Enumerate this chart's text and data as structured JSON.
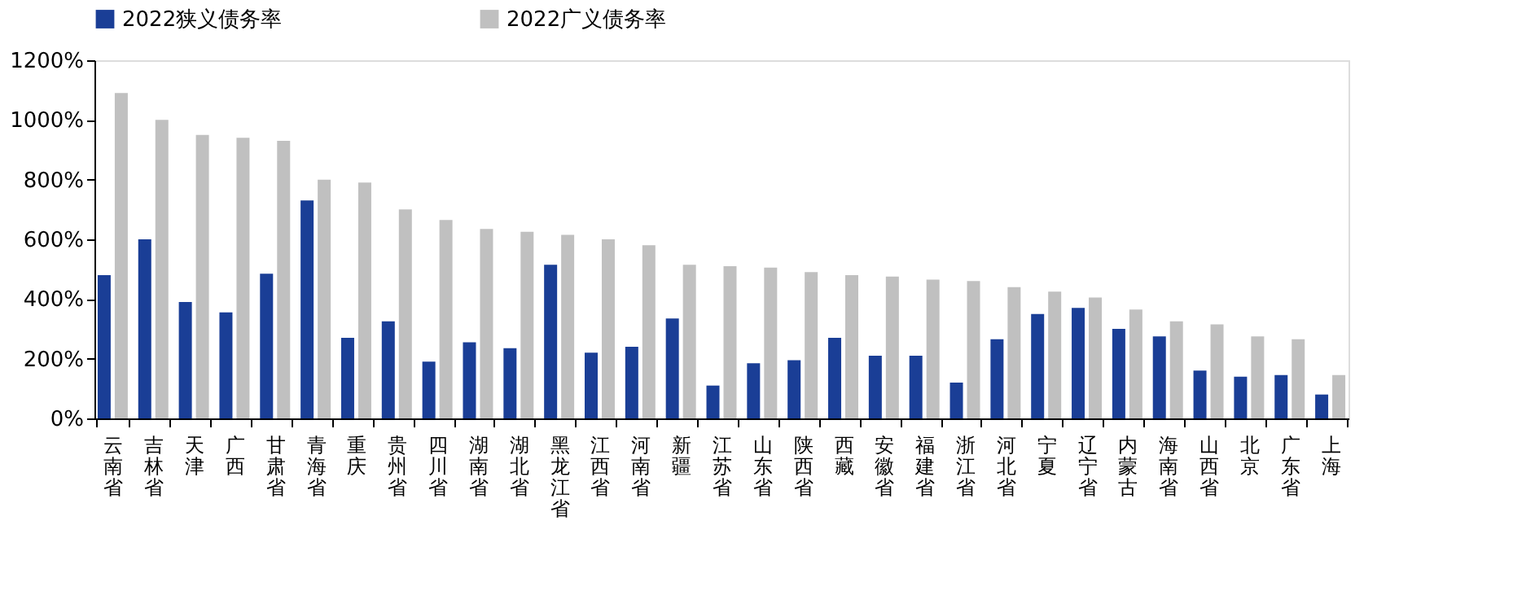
{
  "chart_data": {
    "type": "bar",
    "categories": [
      "云南省",
      "吉林省",
      "天津",
      "广西",
      "甘肃省",
      "青海省",
      "重庆",
      "贵州省",
      "四川省",
      "湖南省",
      "湖北省",
      "黑龙江省",
      "江西省",
      "河南省",
      "新疆",
      "江苏省",
      "山东省",
      "陕西省",
      "西藏",
      "安徽省",
      "福建省",
      "浙江省",
      "河北省",
      "宁夏",
      "辽宁省",
      "内蒙古",
      "海南省",
      "山西省",
      "北京",
      "广东省",
      "上海"
    ],
    "series": [
      {
        "name": "2022狭义债务率",
        "color": "#1a3e96",
        "values": [
          480,
          600,
          390,
          355,
          485,
          730,
          270,
          325,
          190,
          255,
          235,
          515,
          220,
          240,
          335,
          110,
          185,
          195,
          270,
          210,
          210,
          120,
          265,
          350,
          370,
          300,
          275,
          160,
          140,
          145,
          80
        ]
      },
      {
        "name": "2022广义债务率",
        "color": "#c0c0c0",
        "values": [
          1090,
          1000,
          950,
          940,
          930,
          800,
          790,
          700,
          665,
          635,
          625,
          615,
          600,
          580,
          515,
          510,
          505,
          490,
          480,
          475,
          465,
          460,
          440,
          425,
          405,
          365,
          325,
          315,
          275,
          265,
          145
        ]
      }
    ],
    "ylim": [
      0,
      1200
    ],
    "yticks": [
      {
        "value": 0,
        "label": "0%"
      },
      {
        "value": 200,
        "label": "200%"
      },
      {
        "value": 400,
        "label": "400%"
      },
      {
        "value": 600,
        "label": "600%"
      },
      {
        "value": 800,
        "label": "800%"
      },
      {
        "value": 1000,
        "label": "1000%"
      },
      {
        "value": 1200,
        "label": "1200%"
      }
    ],
    "grid": false,
    "legend": "top"
  }
}
